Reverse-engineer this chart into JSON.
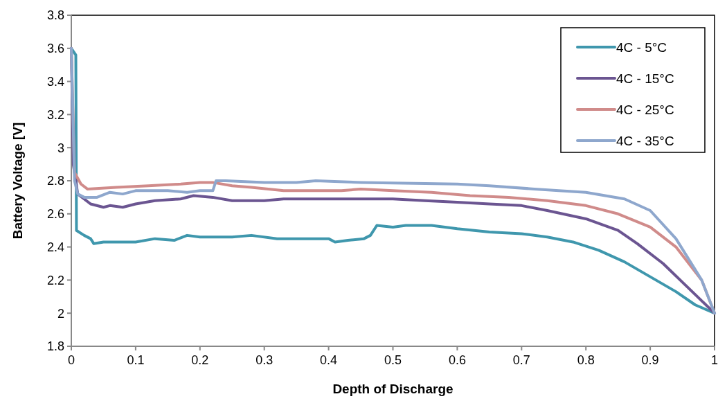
{
  "chart_data": {
    "type": "line",
    "xlabel": "Depth of Discharge",
    "ylabel": "Battery Voltage [V]",
    "xlim": [
      0,
      1
    ],
    "xticks": [
      0,
      0.1,
      0.2,
      0.3,
      0.4,
      0.5,
      0.6,
      0.7,
      0.8,
      0.9,
      1
    ],
    "ylim": [
      1.8,
      3.8
    ],
    "yticks": [
      1.8,
      2,
      2.2,
      2.4,
      2.6,
      2.8,
      3,
      3.2,
      3.4,
      3.6,
      3.8
    ],
    "legend": "top right",
    "series": [
      {
        "name": "4C - 5°C",
        "color": "#3f97ad",
        "x": [
          0,
          0.007,
          0.008,
          0.02,
          0.03,
          0.035,
          0.05,
          0.1,
          0.13,
          0.16,
          0.18,
          0.2,
          0.25,
          0.28,
          0.32,
          0.4,
          0.41,
          0.43,
          0.455,
          0.465,
          0.475,
          0.5,
          0.52,
          0.56,
          0.6,
          0.65,
          0.7,
          0.74,
          0.78,
          0.82,
          0.86,
          0.9,
          0.94,
          0.97,
          1
        ],
        "values": [
          3.6,
          3.56,
          2.5,
          2.47,
          2.45,
          2.42,
          2.43,
          2.43,
          2.45,
          2.44,
          2.47,
          2.46,
          2.46,
          2.47,
          2.45,
          2.45,
          2.43,
          2.44,
          2.45,
          2.47,
          2.53,
          2.52,
          2.53,
          2.53,
          2.51,
          2.49,
          2.48,
          2.46,
          2.43,
          2.38,
          2.31,
          2.22,
          2.13,
          2.05,
          2
        ]
      },
      {
        "name": "4C - 15°C",
        "color": "#6b5591",
        "x": [
          0,
          0.003,
          0.01,
          0.03,
          0.05,
          0.06,
          0.08,
          0.1,
          0.13,
          0.17,
          0.19,
          0.22,
          0.25,
          0.3,
          0.33,
          0.5,
          0.55,
          0.6,
          0.65,
          0.7,
          0.74,
          0.8,
          0.85,
          0.88,
          0.92,
          0.96,
          1
        ],
        "values": [
          3.6,
          2.9,
          2.72,
          2.66,
          2.64,
          2.65,
          2.64,
          2.66,
          2.68,
          2.69,
          2.71,
          2.7,
          2.68,
          2.68,
          2.69,
          2.69,
          2.68,
          2.67,
          2.66,
          2.65,
          2.62,
          2.57,
          2.5,
          2.42,
          2.3,
          2.15,
          2
        ]
      },
      {
        "name": "4C - 25°C",
        "color": "#d08b8a",
        "x": [
          0,
          0.005,
          0.015,
          0.025,
          0.07,
          0.12,
          0.17,
          0.2,
          0.22,
          0.25,
          0.28,
          0.33,
          0.42,
          0.45,
          0.5,
          0.56,
          0.62,
          0.68,
          0.74,
          0.8,
          0.85,
          0.9,
          0.94,
          0.98,
          1
        ],
        "values": [
          3.6,
          2.85,
          2.78,
          2.75,
          2.76,
          2.77,
          2.78,
          2.79,
          2.79,
          2.77,
          2.76,
          2.74,
          2.74,
          2.75,
          2.74,
          2.73,
          2.71,
          2.7,
          2.68,
          2.65,
          2.6,
          2.52,
          2.4,
          2.2,
          2
        ]
      },
      {
        "name": "4C - 35°C",
        "color": "#8ea7cd",
        "x": [
          0,
          0.005,
          0.01,
          0.02,
          0.04,
          0.06,
          0.08,
          0.1,
          0.15,
          0.18,
          0.2,
          0.22,
          0.225,
          0.24,
          0.3,
          0.35,
          0.38,
          0.45,
          0.6,
          0.65,
          0.72,
          0.8,
          0.86,
          0.9,
          0.94,
          0.98,
          1
        ],
        "values": [
          3.6,
          2.8,
          2.72,
          2.7,
          2.7,
          2.73,
          2.72,
          2.74,
          2.74,
          2.73,
          2.74,
          2.74,
          2.8,
          2.8,
          2.79,
          2.79,
          2.8,
          2.79,
          2.78,
          2.77,
          2.75,
          2.73,
          2.69,
          2.62,
          2.45,
          2.2,
          2
        ]
      }
    ]
  }
}
